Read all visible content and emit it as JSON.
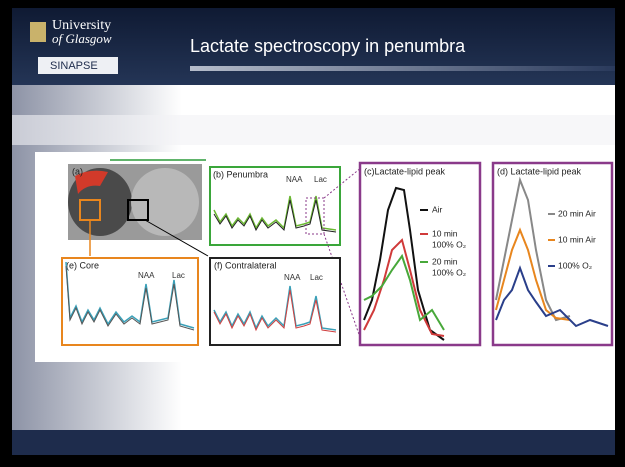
{
  "header": {
    "logo": {
      "line1": "University",
      "line2": "of Glasgow",
      "sub": "SINAPSE"
    },
    "title": "Lactate spectroscopy in penumbra"
  },
  "figure": {
    "panels": [
      {
        "label": "(a)"
      },
      {
        "label": "(b) Penumbra",
        "peaks": [
          "NAA",
          "Lac"
        ]
      },
      {
        "label": "(c)Lactate-lipid peak",
        "legend": [
          {
            "lines": [
              "Air"
            ]
          },
          {
            "lines": [
              "10 min",
              "100% O₂"
            ]
          },
          {
            "lines": [
              "20 min",
              "100% O₂"
            ]
          }
        ]
      },
      {
        "label": "(d) Lactate-lipid peak",
        "legend": [
          {
            "lines": [
              "20 min Air"
            ]
          },
          {
            "lines": [
              "10 min Air"
            ]
          },
          {
            "lines": [
              "100% O₂"
            ]
          }
        ]
      },
      {
        "label": "(e) Core",
        "peaks": [
          "NAA",
          "Lac"
        ]
      },
      {
        "label": "(f) Contralateral",
        "peaks": [
          "NAA",
          "Lac"
        ]
      }
    ]
  }
}
